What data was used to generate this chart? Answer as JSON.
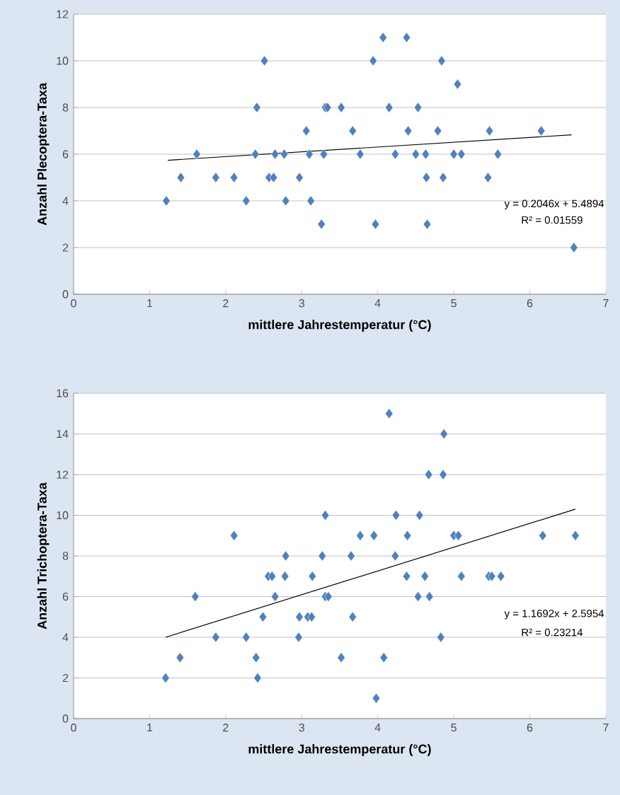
{
  "chart_data": [
    {
      "type": "scatter",
      "xlabel": "mittlere Jahrestemperatur (°C)",
      "ylabel": "Anzahl Plecoptera-Taxa",
      "xlim": [
        0,
        7
      ],
      "xticks": [
        0,
        1,
        2,
        3,
        4,
        5,
        6,
        7
      ],
      "ylim": [
        0,
        12
      ],
      "yticks": [
        0,
        2,
        4,
        6,
        8,
        10,
        12
      ],
      "grid": "y",
      "annotations": [
        "y = 0.2046x + 5.4894",
        "R² = 0.01559"
      ],
      "series": [
        {
          "marker": "diamond",
          "color": "#4f81bd",
          "x": [
            1.22,
            1.41,
            1.62,
            1.87,
            2.11,
            2.27,
            2.41,
            2.39,
            2.51,
            2.57,
            2.63,
            2.65,
            2.77,
            2.79,
            2.97,
            3.06,
            3.1,
            3.12,
            3.26,
            3.29,
            3.31,
            3.34,
            3.52,
            3.67,
            3.77,
            3.94,
            3.97,
            4.07,
            4.15,
            4.23,
            4.38,
            4.4,
            4.5,
            4.53,
            4.63,
            4.64,
            4.65,
            4.79,
            4.84,
            4.86,
            5.0,
            5.05,
            5.1,
            5.45,
            5.47,
            5.58,
            6.15,
            6.58
          ],
          "values": [
            4,
            5,
            6,
            5,
            5,
            4,
            8,
            6,
            10,
            5,
            5,
            6,
            6,
            4,
            5,
            7,
            6,
            4,
            3,
            6,
            8,
            8,
            8,
            7,
            6,
            10,
            3,
            11,
            8,
            6,
            11,
            7,
            6,
            8,
            6,
            5,
            3,
            7,
            10,
            5,
            6,
            9,
            6,
            5,
            7,
            6,
            7,
            2
          ]
        },
        {
          "type": "line",
          "marker": "none",
          "color": "#000000",
          "x": [
            1.24,
            6.55
          ],
          "values": [
            5.74,
            6.83
          ]
        }
      ]
    },
    {
      "type": "scatter",
      "xlabel": "mittlere Jahrestemperatur (°C)",
      "ylabel": "Anzahl Trichoptera-Taxa",
      "xlim": [
        0,
        7
      ],
      "xticks": [
        0,
        1,
        2,
        3,
        4,
        5,
        6,
        7
      ],
      "ylim": [
        0,
        16
      ],
      "yticks": [
        0,
        2,
        4,
        6,
        8,
        10,
        12,
        14,
        16
      ],
      "grid": "y",
      "annotations": [
        "y = 1.1692x + 2.5954",
        "R² = 0.23214"
      ],
      "series": [
        {
          "marker": "diamond",
          "color": "#4f81bd",
          "x": [
            1.21,
            1.4,
            1.6,
            1.87,
            2.11,
            2.27,
            2.4,
            2.42,
            2.49,
            2.56,
            2.61,
            2.65,
            2.78,
            2.79,
            2.96,
            2.97,
            3.08,
            3.13,
            3.14,
            3.27,
            3.31,
            3.31,
            3.35,
            3.52,
            3.65,
            3.67,
            3.77,
            3.95,
            3.98,
            4.08,
            4.15,
            4.23,
            4.24,
            4.38,
            4.39,
            4.53,
            4.55,
            4.62,
            4.67,
            4.68,
            4.83,
            4.86,
            4.87,
            5.0,
            5.06,
            5.1,
            5.46,
            5.5,
            5.62,
            6.17,
            6.6
          ],
          "values": [
            2,
            3,
            6,
            4,
            9,
            4,
            3,
            2,
            5,
            7,
            7,
            6,
            7,
            8,
            4,
            5,
            5,
            5,
            7,
            8,
            10,
            6,
            6,
            3,
            8,
            5,
            9,
            9,
            1,
            3,
            15,
            8,
            10,
            7,
            9,
            6,
            10,
            7,
            12,
            6,
            4,
            12,
            14,
            9,
            9,
            7,
            7,
            7,
            7,
            9,
            9
          ]
        },
        {
          "type": "line",
          "marker": "none",
          "color": "#000000",
          "x": [
            1.21,
            6.6
          ],
          "values": [
            4.0,
            10.3
          ]
        }
      ]
    }
  ]
}
